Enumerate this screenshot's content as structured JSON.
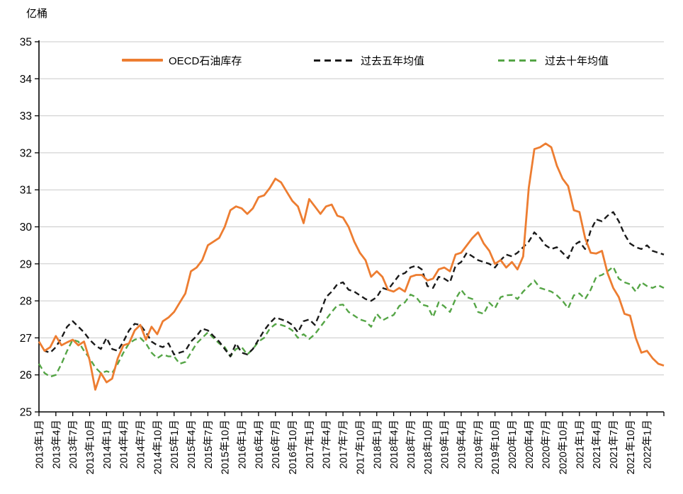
{
  "y_axis_title": "亿桶",
  "chart_data": {
    "type": "line",
    "grid": true,
    "legend_position": "top-inside",
    "ylim": [
      25,
      35
    ],
    "y_ticks": [
      25,
      26,
      27,
      28,
      29,
      30,
      31,
      32,
      33,
      34,
      35
    ],
    "x_tick_every_months": 3,
    "x_tick_labels": [
      "2013年1月",
      "2013年4月",
      "2013年7月",
      "2013年10月",
      "2014年1月",
      "2014年4月",
      "2014年7月",
      "2014年10月",
      "2015年1月",
      "2015年4月",
      "2015年7月",
      "2015年10月",
      "2016年1月",
      "2016年4月",
      "2016年7月",
      "2016年10月",
      "2017年1月",
      "2017年4月",
      "2017年7月",
      "2017年10月",
      "2018年1月",
      "2018年4月",
      "2018年7月",
      "2018年10月",
      "2019年1月",
      "2019年4月",
      "2019年7月",
      "2019年10月",
      "2020年1月",
      "2020年4月",
      "2020年7月",
      "2020年10月",
      "2021年1月",
      "2021年4月",
      "2021年7月",
      "2021年10月",
      "2022年1月"
    ],
    "colors": {
      "axis": "#000000",
      "gridline": "#c9c9c9",
      "orange": "#ED7D31",
      "black": "#1a1a1a",
      "green": "#55a546"
    },
    "series": [
      {
        "name": "OECD石油库存",
        "color": "#ED7D31",
        "dash": "solid",
        "values": [
          26.9,
          26.65,
          26.75,
          27.05,
          26.8,
          26.88,
          26.95,
          26.8,
          26.9,
          26.4,
          25.6,
          26.05,
          25.8,
          25.9,
          26.45,
          26.8,
          26.85,
          27.2,
          27.35,
          26.95,
          27.3,
          27.1,
          27.45,
          27.55,
          27.7,
          27.95,
          28.2,
          28.8,
          28.9,
          29.1,
          29.5,
          29.6,
          29.7,
          30.0,
          30.45,
          30.55,
          30.5,
          30.35,
          30.5,
          30.8,
          30.85,
          31.05,
          31.3,
          31.2,
          30.95,
          30.7,
          30.55,
          30.1,
          30.75,
          30.55,
          30.35,
          30.55,
          30.6,
          30.3,
          30.25,
          30.0,
          29.6,
          29.3,
          29.1,
          28.65,
          28.8,
          28.65,
          28.3,
          28.25,
          28.35,
          28.25,
          28.65,
          28.7,
          28.7,
          28.55,
          28.6,
          28.85,
          28.9,
          28.8,
          29.25,
          29.3,
          29.5,
          29.7,
          29.85,
          29.55,
          29.35,
          29.0,
          29.1,
          28.9,
          29.05,
          28.85,
          29.2,
          31.05,
          32.1,
          32.15,
          32.25,
          32.15,
          31.65,
          31.3,
          31.1,
          30.45,
          30.4,
          29.7,
          29.3,
          29.28,
          29.35,
          28.75,
          28.35,
          28.1,
          27.65,
          27.6,
          27.0,
          26.6,
          26.65,
          26.45,
          26.3,
          26.25
        ]
      },
      {
        "name": "过去五年均值",
        "color": "#1a1a1a",
        "dash": "dashed",
        "values": [
          26.9,
          26.65,
          26.6,
          26.75,
          27.0,
          27.3,
          27.45,
          27.3,
          27.15,
          26.95,
          26.8,
          26.7,
          27.0,
          26.7,
          26.65,
          26.9,
          27.2,
          27.38,
          27.35,
          27.15,
          26.9,
          26.8,
          26.75,
          26.85,
          26.55,
          26.6,
          26.65,
          26.9,
          27.05,
          27.25,
          27.2,
          27.05,
          26.9,
          26.7,
          26.5,
          26.85,
          26.6,
          26.55,
          26.7,
          26.95,
          27.2,
          27.4,
          27.55,
          27.5,
          27.45,
          27.35,
          27.15,
          27.45,
          27.5,
          27.35,
          27.7,
          28.1,
          28.25,
          28.45,
          28.5,
          28.3,
          28.25,
          28.15,
          28.05,
          28.0,
          28.1,
          28.35,
          28.3,
          28.5,
          28.7,
          28.75,
          28.9,
          28.95,
          28.85,
          28.4,
          28.35,
          28.65,
          28.6,
          28.5,
          28.95,
          29.05,
          29.3,
          29.2,
          29.1,
          29.05,
          29.0,
          28.9,
          29.1,
          29.25,
          29.2,
          29.3,
          29.45,
          29.6,
          29.85,
          29.7,
          29.5,
          29.4,
          29.45,
          29.3,
          29.15,
          29.5,
          29.6,
          29.4,
          29.9,
          30.2,
          30.15,
          30.3,
          30.4,
          30.15,
          29.8,
          29.55,
          29.45,
          29.4,
          29.5,
          29.35,
          29.3,
          29.25
        ]
      },
      {
        "name": "过去十年均值",
        "color": "#55a546",
        "dash": "dashed",
        "values": [
          26.3,
          26.05,
          25.95,
          26.0,
          26.3,
          26.65,
          26.95,
          26.9,
          26.65,
          26.45,
          26.2,
          26.05,
          26.1,
          26.05,
          26.3,
          26.6,
          26.85,
          26.95,
          27.0,
          26.85,
          26.6,
          26.45,
          26.55,
          26.5,
          26.5,
          26.3,
          26.35,
          26.6,
          26.85,
          27.0,
          27.15,
          27.0,
          26.85,
          26.75,
          26.5,
          26.7,
          26.75,
          26.55,
          26.7,
          26.9,
          27.0,
          27.25,
          27.37,
          27.35,
          27.3,
          27.2,
          27.0,
          27.1,
          26.97,
          27.1,
          27.3,
          27.5,
          27.7,
          27.88,
          27.9,
          27.7,
          27.6,
          27.5,
          27.45,
          27.3,
          27.65,
          27.47,
          27.55,
          27.62,
          27.86,
          27.96,
          28.17,
          28.1,
          27.9,
          27.86,
          27.56,
          27.96,
          27.85,
          27.7,
          28.05,
          28.3,
          28.1,
          28.05,
          27.7,
          27.65,
          27.95,
          27.8,
          28.1,
          28.15,
          28.16,
          28.05,
          28.25,
          28.4,
          28.55,
          28.35,
          28.3,
          28.25,
          28.15,
          28.0,
          27.8,
          28.15,
          28.2,
          28.05,
          28.3,
          28.65,
          28.7,
          28.8,
          28.92,
          28.6,
          28.5,
          28.45,
          28.25,
          28.5,
          28.4,
          28.35,
          28.42,
          28.35
        ]
      }
    ]
  }
}
